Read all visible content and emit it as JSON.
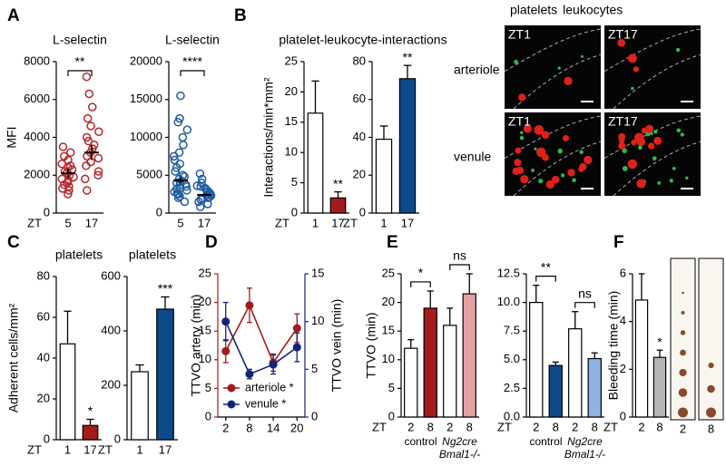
{
  "chart_data": [
    {
      "type": "strip",
      "panel": "A",
      "title": "L-selectin",
      "ylabel": "MFI",
      "xlabel": "ZT",
      "categories": [
        "5",
        "17"
      ],
      "color": "#b3262a",
      "series": [
        [
          1000,
          1200,
          1300,
          1500,
          1600,
          1700,
          1800,
          1900,
          2000,
          2100,
          2200,
          2300,
          2500,
          2600,
          2800,
          3000,
          3200,
          3500,
          1400,
          2400
        ],
        [
          1200,
          1800,
          2000,
          2200,
          2500,
          2700,
          2900,
          3000,
          3200,
          3400,
          3600,
          3800,
          4000,
          4300,
          4600,
          5000,
          5600,
          6300,
          7200
        ]
      ],
      "means": [
        2100,
        3200
      ],
      "sem": [
        250,
        400
      ],
      "ylim": [
        0,
        8000
      ],
      "yticks": [
        0,
        2000,
        4000,
        6000,
        8000
      ],
      "comparisons": [
        {
          "label": "**",
          "pair": [
            0,
            1
          ]
        }
      ]
    },
    {
      "type": "strip",
      "title": "L-selectin",
      "categories": [
        "5",
        "17"
      ],
      "color": "#1f5a9e",
      "series": [
        [
          1500,
          2000,
          2500,
          2800,
          3000,
          3200,
          3500,
          3700,
          4000,
          4200,
          4500,
          4800,
          5000,
          5500,
          6000,
          6500,
          7000,
          7500,
          8000,
          9000,
          10000,
          11000,
          12000,
          12500,
          15500,
          3300,
          3800,
          4100,
          2200,
          2600
        ],
        [
          800,
          1200,
          1500,
          1800,
          2000,
          2100,
          2300,
          2500,
          2700,
          2900,
          3100,
          3300,
          3600,
          4000,
          4500,
          5200,
          1900,
          2400,
          2800,
          3500
        ]
      ],
      "means": [
        4300,
        2400
      ],
      "sem": [
        400,
        200
      ],
      "ylim": [
        0,
        20000
      ],
      "yticks": [
        0,
        5000,
        10000,
        15000,
        20000
      ],
      "comparisons": [
        {
          "label": "****",
          "pair": [
            0,
            1
          ]
        }
      ]
    },
    {
      "type": "bar",
      "panel": "B",
      "title": "platelet-leukocyte-interactions",
      "ylabel": "Interactions/min*mm²",
      "xlabel": "ZT",
      "categories": [
        "1",
        "17"
      ],
      "values": [
        16.5,
        2.5
      ],
      "errors": [
        5.3,
        1
      ],
      "colors": [
        "#ffffff",
        "#a31b1b"
      ],
      "sig": [
        null,
        "**"
      ],
      "ylim": [
        0,
        25
      ],
      "yticks": [
        0,
        5,
        10,
        15,
        20,
        25
      ]
    },
    {
      "type": "bar",
      "xlabel": "ZT",
      "categories": [
        "1",
        "17"
      ],
      "values": [
        39,
        71
      ],
      "errors": [
        7,
        7
      ],
      "colors": [
        "#ffffff",
        "#0d4a8c"
      ],
      "sig": [
        null,
        "**"
      ],
      "ylim": [
        0,
        80
      ],
      "yticks": [
        0,
        20,
        40,
        60,
        80
      ]
    },
    {
      "type": "bar",
      "panel": "C",
      "title": "platelets",
      "ylabel": "Adherent cells/mm²",
      "xlabel": "ZT",
      "categories": [
        "1",
        "17"
      ],
      "values": [
        47,
        7
      ],
      "errors": [
        16,
        3
      ],
      "colors": [
        "#ffffff",
        "#a31b1b"
      ],
      "sig": [
        null,
        "*"
      ],
      "ylim": [
        0,
        80
      ],
      "yticks": [
        0,
        20,
        40,
        60,
        80
      ]
    },
    {
      "type": "bar",
      "title": "platelets",
      "xlabel": "ZT",
      "categories": [
        "1",
        "17"
      ],
      "values": [
        250,
        480
      ],
      "errors": [
        25,
        45
      ],
      "colors": [
        "#ffffff",
        "#0d4a8c"
      ],
      "sig": [
        null,
        "***"
      ],
      "ylim": [
        0,
        600
      ],
      "yticks": [
        0,
        200,
        400,
        600
      ]
    },
    {
      "type": "line",
      "panel": "D",
      "ylabel": "TTVO artery (min)",
      "y2label": "TTVO vein (min)",
      "x": [
        2,
        8,
        14,
        20
      ],
      "xlim": [
        0,
        22
      ],
      "xticks": [
        2,
        8,
        14,
        20
      ],
      "ylim": [
        0,
        25
      ],
      "yticks": [
        0,
        5,
        10,
        15,
        20,
        25
      ],
      "y2lim": [
        0,
        15
      ],
      "y2ticks": [
        0,
        5,
        10,
        15
      ],
      "series": [
        {
          "name": "arteriole *",
          "color": "#a31b1b",
          "values": [
            11.5,
            19.5,
            9.5,
            15.5
          ],
          "errors": [
            2,
            3,
            1.5,
            2.5
          ]
        },
        {
          "name": "venule *",
          "color": "#14237a",
          "axis": "y2",
          "values": [
            10,
            4.5,
            5.5,
            7.3
          ],
          "errors": [
            2,
            0.5,
            1,
            1.5
          ]
        }
      ]
    },
    {
      "type": "bar",
      "panel": "E",
      "ylabel": "TTVO (min)",
      "xlabel": "ZT",
      "categories": [
        "2",
        "8",
        "2",
        "8"
      ],
      "values": [
        12,
        19,
        16,
        21.5
      ],
      "errors": [
        1.5,
        3,
        3,
        3.5
      ],
      "colors": [
        "#ffffff",
        "#a31b1b",
        "#ffffff",
        "#e3a0a3"
      ],
      "ylim": [
        0,
        25
      ],
      "yticks": [
        0,
        5,
        10,
        15,
        20,
        25
      ],
      "comparisons": [
        {
          "label": "*",
          "pair": [
            0,
            1
          ]
        },
        {
          "label": "ns",
          "pair": [
            2,
            3
          ]
        }
      ],
      "groups": [
        {
          "label": [
            "control"
          ],
          "pair": [
            0,
            1
          ]
        },
        {
          "label": [
            "Ng2cre",
            "Bmal1-/-"
          ],
          "pair": [
            2,
            3
          ]
        }
      ]
    },
    {
      "type": "bar",
      "xlabel": "ZT",
      "categories": [
        "2",
        "8",
        "2",
        "8"
      ],
      "values": [
        10,
        4.5,
        7.7,
        5.1
      ],
      "errors": [
        1.5,
        0.3,
        1.5,
        0.5
      ],
      "colors": [
        "#ffffff",
        "#0d4a8c",
        "#ffffff",
        "#8fb4e3"
      ],
      "ylim": [
        0,
        12.5
      ],
      "yticks": [
        {
          "value": 0,
          "label": "0.0"
        },
        2.5,
        {
          "value": 5,
          "label": "5.0"
        },
        7.5,
        {
          "value": 10,
          "label": "10.0"
        },
        12.5
      ],
      "comparisons": [
        {
          "label": "**",
          "pair": [
            0,
            1
          ]
        },
        {
          "label": "ns",
          "pair": [
            2,
            3
          ]
        }
      ],
      "groups": [
        {
          "label": [
            "control"
          ],
          "pair": [
            0,
            1
          ]
        },
        {
          "label": [
            "Ng2cre",
            "Bmal1-/-"
          ],
          "pair": [
            2,
            3
          ]
        }
      ]
    },
    {
      "type": "bar",
      "panel": "F",
      "ylabel": "Bleeding time (min)",
      "xlabel": "ZT",
      "categories": [
        "2",
        "8"
      ],
      "values": [
        4.9,
        2.5
      ],
      "errors": [
        1.1,
        0.3
      ],
      "colors": [
        "#ffffff",
        "#b5b5b5"
      ],
      "sig": [
        null,
        "*"
      ],
      "ylim": [
        0,
        6
      ],
      "yticks": [
        0,
        2,
        4,
        6
      ]
    }
  ],
  "micrographs": {
    "legend": [
      {
        "text": "platelets",
        "color": "#2db84a"
      },
      {
        "text": "leukocytes",
        "color": "#e0201b"
      }
    ],
    "columns": [
      "ZT1",
      "ZT17"
    ],
    "rows": [
      "arteriole",
      "venule"
    ],
    "bleeding_labels": [
      "2",
      "8"
    ]
  }
}
